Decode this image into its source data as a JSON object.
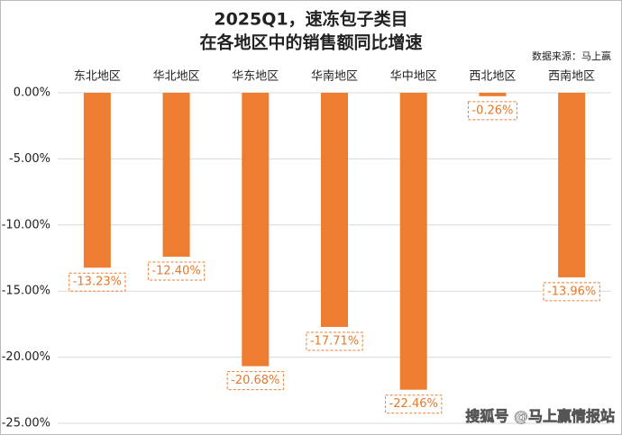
{
  "chart_data": {
    "type": "bar",
    "title_lines": [
      "2025Q1，速冻包子类目",
      "在各地区中的销售额同比增速"
    ],
    "source": "数据来源：马上赢",
    "watermark": "搜狐号 @马上赢情报站",
    "categories": [
      "东北地区",
      "华北地区",
      "华东地区",
      "华南地区",
      "华中地区",
      "西北地区",
      "西南地区"
    ],
    "values": [
      -13.23,
      -12.4,
      -20.68,
      -17.71,
      -22.46,
      -0.26,
      -13.96
    ],
    "value_labels": [
      "-13.23%",
      "-12.40%",
      "-20.68%",
      "-17.71%",
      "-22.46%",
      "-0.26%",
      "-13.96%"
    ],
    "color": "#ed7d31",
    "ylim": [
      -25,
      0
    ],
    "yticks": [
      {
        "value": 0,
        "label": "0.00%"
      },
      {
        "value": -5,
        "label": "-5.00%"
      },
      {
        "value": -10,
        "label": "-10.00%"
      },
      {
        "value": -15,
        "label": "-15.00%"
      },
      {
        "value": -20,
        "label": "-20.00%"
      },
      {
        "value": -25,
        "label": "-25.00%"
      }
    ],
    "grid": true
  }
}
